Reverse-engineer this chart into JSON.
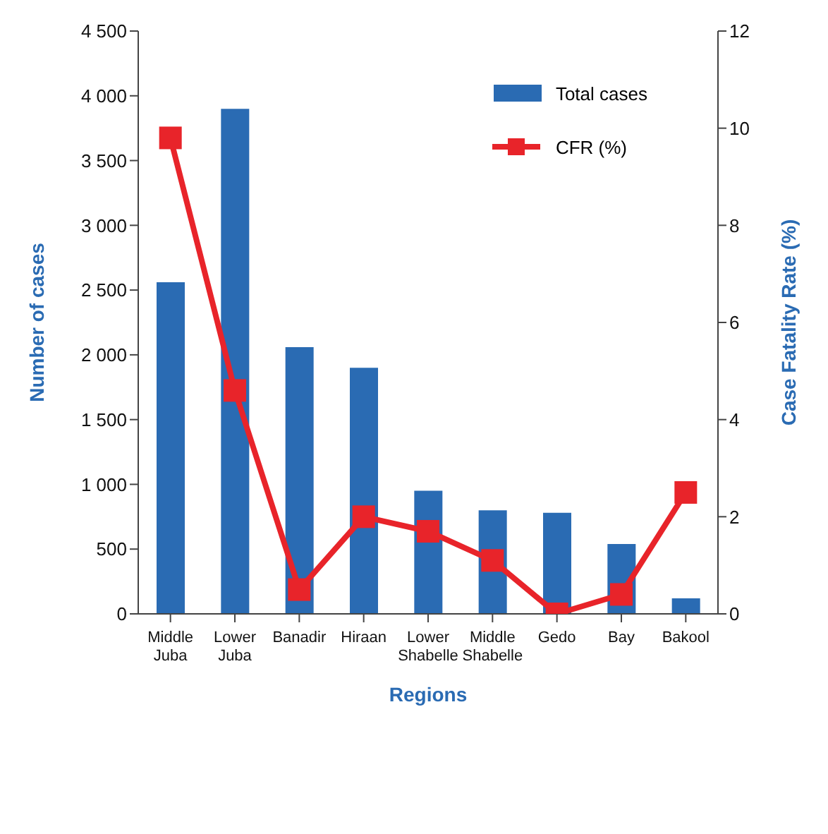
{
  "chart_data": {
    "type": "bar",
    "xlabel": "Regions",
    "ylabel": "Number of cases",
    "y2label": "Case Fatality Rate (%)",
    "categories": [
      "Middle Juba",
      "Lower Juba",
      "Banadir",
      "Hiraan",
      "Lower Shabelle",
      "Middle Shabelle",
      "Gedo",
      "Bay",
      "Bakool"
    ],
    "series": [
      {
        "name": "Total cases",
        "color": "#2a6bb3",
        "values": [
          2560,
          3900,
          2060,
          1900,
          950,
          800,
          780,
          540,
          120
        ]
      },
      {
        "name": "CFR (%)",
        "type": "line",
        "axis": "y2",
        "color": "#e8242a",
        "marker": "square",
        "values": [
          9.8,
          4.6,
          0.5,
          2.0,
          1.7,
          1.1,
          0,
          0.4,
          2.5
        ]
      }
    ],
    "ylim": [
      0,
      4500
    ],
    "yticks": [
      0,
      {
        "value": 500,
        "label": "500"
      },
      {
        "value": 1000,
        "label": "1 000"
      },
      {
        "value": 1500,
        "label": "1 500"
      },
      {
        "value": 2000,
        "label": "2 000"
      },
      {
        "value": 2500,
        "label": "2 500"
      },
      {
        "value": 3000,
        "label": "3 000"
      },
      {
        "value": 3500,
        "label": "3 500"
      },
      {
        "value": 4000,
        "label": "4 000"
      },
      {
        "value": 4500,
        "label": "4 500"
      }
    ],
    "y2lim": [
      0,
      12
    ],
    "y2ticks": [
      0,
      2,
      4,
      6,
      8,
      10,
      12
    ],
    "grid": false,
    "legend": "top right"
  }
}
